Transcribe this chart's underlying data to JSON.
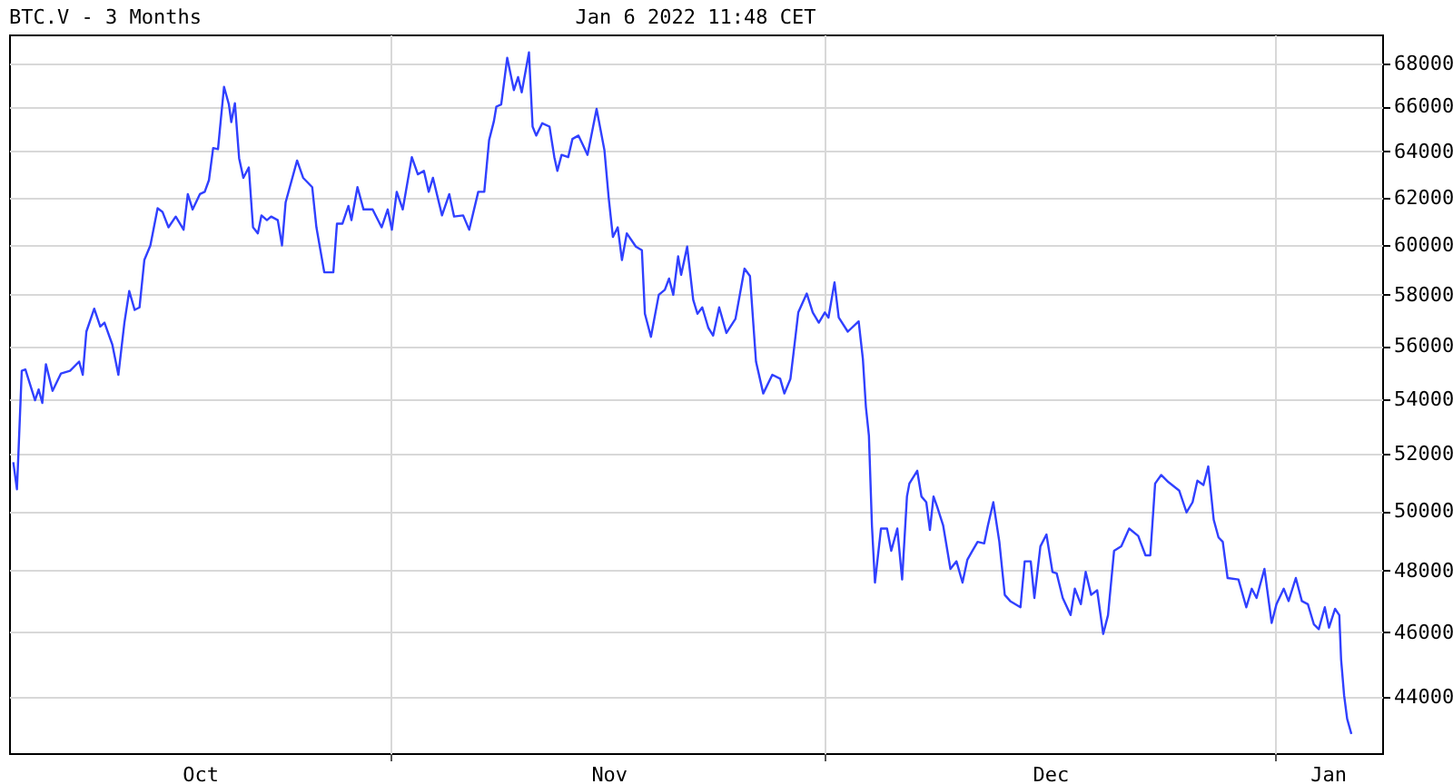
{
  "chart_data": {
    "type": "line",
    "title": "BTC.V - 3 Months",
    "subtitle": "Jan 6 2022 11:48 CET",
    "log": "y",
    "grid": true,
    "marker": "none",
    "line_style": "solid",
    "xlim": [
      "2021-10-05T16:00",
      "2022-01-08T10:00"
    ],
    "xticks": [
      {
        "value": "2021-10-18T20:00",
        "label": "Oct"
      },
      {
        "value": "2021-11-01T00:00",
        "label": null
      },
      {
        "value": "2021-11-16T01:00",
        "label": "Nov"
      },
      {
        "value": "2021-12-01T00:00",
        "label": null
      },
      {
        "value": "2021-12-16T12:00",
        "label": "Dec"
      },
      {
        "value": "2022-01-01T00:00",
        "label": null
      },
      {
        "value": "2022-01-04T16:00",
        "label": "Jan"
      }
    ],
    "ylim": [
      42340,
      69350
    ],
    "yticks": [
      44000,
      46000,
      48000,
      50000,
      52000,
      54000,
      56000,
      58000,
      60000,
      62000,
      64000,
      66000,
      68000
    ],
    "x": [
      "2021-10-05T23:00",
      "2021-10-06T05:00",
      "2021-10-06T07:00",
      "2021-10-06T13:00",
      "2021-10-06T19:00",
      "2021-10-07T11:00",
      "2021-10-07T17:00",
      "2021-10-07T23:00",
      "2021-10-08T05:00",
      "2021-10-08T16:00",
      "2021-10-09T06:00",
      "2021-10-09T21:00",
      "2021-10-10T12:00",
      "2021-10-10T18:00",
      "2021-10-11T00:00",
      "2021-10-11T13:00",
      "2021-10-11T23:00",
      "2021-10-12T06:00",
      "2021-10-12T19:00",
      "2021-10-13T05:00",
      "2021-10-13T15:00",
      "2021-10-13T23:00",
      "2021-10-14T08:00",
      "2021-10-14T16:00",
      "2021-10-15T00:00",
      "2021-10-15T10:00",
      "2021-10-15T22:00",
      "2021-10-16T06:00",
      "2021-10-16T16:00",
      "2021-10-17T04:00",
      "2021-10-17T17:00",
      "2021-10-18T00:00",
      "2021-10-18T08:00",
      "2021-10-18T20:00",
      "2021-10-19T04:00",
      "2021-10-19T11:00",
      "2021-10-19T18:00",
      "2021-10-20T02:00",
      "2021-10-20T07:00",
      "2021-10-20T12:00",
      "2021-10-20T20:00",
      "2021-10-21T00:00",
      "2021-10-21T06:00",
      "2021-10-21T13:00",
      "2021-10-21T20:00",
      "2021-10-22T05:00",
      "2021-10-22T12:00",
      "2021-10-22T20:00",
      "2021-10-23T02:00",
      "2021-10-23T11:00",
      "2021-10-23T18:00",
      "2021-10-24T05:00",
      "2021-10-24T12:00",
      "2021-10-24T18:00",
      "2021-10-25T13:00",
      "2021-10-25T23:00",
      "2021-10-26T14:00",
      "2021-10-26T21:00",
      "2021-10-27T10:00",
      "2021-10-28T01:00",
      "2021-10-28T07:00",
      "2021-10-28T16:00",
      "2021-10-29T02:00",
      "2021-10-29T07:00",
      "2021-10-29T17:00",
      "2021-10-30T03:00",
      "2021-10-30T18:00",
      "2021-10-31T09:00",
      "2021-10-31T19:00",
      "2021-11-01T02:00",
      "2021-11-01T10:00",
      "2021-11-01T20:00",
      "2021-11-02T11:00",
      "2021-11-02T21:00",
      "2021-11-03T07:00",
      "2021-11-03T15:00",
      "2021-11-03T22:00",
      "2021-11-04T13:00",
      "2021-11-05T01:00",
      "2021-11-05T09:00",
      "2021-11-06T00:00",
      "2021-11-06T10:00",
      "2021-11-07T01:00",
      "2021-11-07T11:00",
      "2021-11-07T19:00",
      "2021-11-08T03:00",
      "2021-11-08T07:00",
      "2021-11-08T15:00",
      "2021-11-09T01:00",
      "2021-11-09T12:00",
      "2021-11-09T19:00",
      "2021-11-10T01:00",
      "2021-11-10T13:00",
      "2021-11-10T19:00",
      "2021-11-11T01:00",
      "2021-11-11T11:00",
      "2021-11-11T23:00",
      "2021-11-12T07:00",
      "2021-11-12T12:00",
      "2021-11-12T19:00",
      "2021-11-13T06:00",
      "2021-11-13T13:00",
      "2021-11-13T23:00",
      "2021-11-14T06:00",
      "2021-11-14T14:00",
      "2021-11-15T05:00",
      "2021-11-15T18:00",
      "2021-11-16T01:00",
      "2021-11-16T08:00",
      "2021-11-16T16:00",
      "2021-11-16T23:00",
      "2021-11-17T07:00",
      "2021-11-17T22:00",
      "2021-11-18T08:00",
      "2021-11-18T13:00",
      "2021-11-18T23:00",
      "2021-11-19T12:00",
      "2021-11-19T22:00",
      "2021-11-20T05:00",
      "2021-11-20T12:00",
      "2021-11-20T20:00",
      "2021-11-21T01:00",
      "2021-11-21T11:00",
      "2021-11-21T21:00",
      "2021-11-22T04:00",
      "2021-11-22T12:00",
      "2021-11-22T22:00",
      "2021-11-23T06:00",
      "2021-11-23T16:00",
      "2021-11-24T04:00",
      "2021-11-24T19:00",
      "2021-11-25T10:00",
      "2021-11-25T19:00",
      "2021-11-26T05:00",
      "2021-11-26T17:00",
      "2021-11-27T08:00",
      "2021-11-27T21:00",
      "2021-11-28T04:00",
      "2021-11-28T14:00",
      "2021-11-28T19:00",
      "2021-11-29T03:00",
      "2021-11-29T17:00",
      "2021-11-30T03:00",
      "2021-11-30T13:00",
      "2021-11-30T23:00",
      "2021-12-01T05:00",
      "2021-12-01T15:00",
      "2021-12-01T22:00",
      "2021-12-02T13:00",
      "2021-12-03T07:00",
      "2021-12-03T14:00",
      "2021-12-03T19:00",
      "2021-12-04T00:00",
      "2021-12-04T05:00",
      "2021-12-04T10:00",
      "2021-12-04T20:00",
      "2021-12-05T06:00",
      "2021-12-05T13:00",
      "2021-12-05T23:00",
      "2021-12-06T07:00",
      "2021-12-06T15:00",
      "2021-12-06T19:00",
      "2021-12-07T08:00",
      "2021-12-07T15:00",
      "2021-12-07T23:00",
      "2021-12-08T05:00",
      "2021-12-08T11:00",
      "2021-12-08T17:00",
      "2021-12-09T03:00",
      "2021-12-09T15:00",
      "2021-12-10T01:00",
      "2021-12-10T11:00",
      "2021-12-10T19:00",
      "2021-12-11T02:00",
      "2021-12-11T12:00",
      "2021-12-11T23:00",
      "2021-12-12T05:00",
      "2021-12-12T14:00",
      "2021-12-13T00:00",
      "2021-12-13T09:00",
      "2021-12-13T18:00",
      "2021-12-14T11:00",
      "2021-12-14T18:00",
      "2021-12-15T04:00",
      "2021-12-15T10:00",
      "2021-12-15T20:00",
      "2021-12-16T06:00",
      "2021-12-16T16:00",
      "2021-12-16T23:00",
      "2021-12-17T09:00",
      "2021-12-17T22:00",
      "2021-12-18T05:00",
      "2021-12-18T15:00",
      "2021-12-18T23:00",
      "2021-12-19T08:00",
      "2021-12-19T18:00",
      "2021-12-20T04:00",
      "2021-12-20T12:00",
      "2021-12-20T22:00",
      "2021-12-21T10:00",
      "2021-12-21T23:00",
      "2021-12-22T14:00",
      "2021-12-23T02:00",
      "2021-12-23T10:00",
      "2021-12-23T18:00",
      "2021-12-24T04:00",
      "2021-12-24T16:00",
      "2021-12-25T10:00",
      "2021-12-25T22:00",
      "2021-12-26T08:00",
      "2021-12-26T16:00",
      "2021-12-27T02:00",
      "2021-12-27T10:00",
      "2021-12-27T19:00",
      "2021-12-28T03:00",
      "2021-12-28T10:00",
      "2021-12-28T18:00",
      "2021-12-29T12:00",
      "2021-12-30T01:00",
      "2021-12-30T10:00",
      "2021-12-30T18:00",
      "2021-12-31T07:00",
      "2021-12-31T19:00",
      "2022-01-01T03:00",
      "2022-01-01T15:00",
      "2022-01-01T23:00",
      "2022-01-02T11:00",
      "2022-01-02T21:00",
      "2022-01-03T07:00",
      "2022-01-03T17:00",
      "2022-01-04T01:00",
      "2022-01-04T11:00",
      "2022-01-04T18:00",
      "2022-01-05T04:00",
      "2022-01-05T11:00",
      "2022-01-05T14:00",
      "2022-01-05T19:00",
      "2022-01-06T00:00",
      "2022-01-06T07:00"
    ],
    "series": [
      {
        "color": "#3040ff",
        "values": [
          51700,
          50750,
          51750,
          55050,
          55100,
          53950,
          54350,
          53850,
          55300,
          54300,
          54950,
          55050,
          55400,
          54900,
          56550,
          57450,
          56750,
          56900,
          56050,
          54900,
          56900,
          58150,
          57400,
          57500,
          59400,
          60000,
          61550,
          61400,
          60750,
          61200,
          60650,
          62150,
          61500,
          62150,
          62250,
          62750,
          64150,
          64100,
          65500,
          66900,
          66100,
          65300,
          66150,
          63700,
          62850,
          63300,
          60750,
          60500,
          61250,
          61050,
          61200,
          61050,
          60000,
          61800,
          63600,
          62850,
          62450,
          60750,
          58900,
          58900,
          60900,
          60900,
          61650,
          61050,
          62450,
          61500,
          61500,
          60750,
          61500,
          60650,
          62250,
          61500,
          63750,
          63000,
          63150,
          62250,
          62850,
          61250,
          62150,
          61200,
          61250,
          60650,
          62250,
          62250,
          64500,
          65350,
          66000,
          66100,
          68250,
          66750,
          67350,
          66650,
          68500,
          65100,
          64700,
          65250,
          65100,
          63750,
          63150,
          63850,
          63750,
          64550,
          64700,
          64300,
          63850,
          65900,
          64050,
          62000,
          60350,
          60750,
          59400,
          60500,
          59950,
          59800,
          57250,
          56350,
          58000,
          58200,
          58650,
          58000,
          59550,
          58800,
          59950,
          57800,
          57250,
          57500,
          56700,
          56400,
          57500,
          56500,
          57050,
          59050,
          58750,
          55400,
          54200,
          54900,
          54750,
          54200,
          54750,
          55700,
          57300,
          58050,
          57300,
          56900,
          57300,
          57100,
          58500,
          57100,
          56550,
          56950,
          55500,
          53700,
          52650,
          49500,
          47600,
          49400,
          49400,
          48650,
          49400,
          47700,
          50500,
          50950,
          51400,
          50500,
          50300,
          49350,
          50500,
          50150,
          49500,
          48050,
          48300,
          47600,
          48350,
          48600,
          48950,
          48900,
          49500,
          50300,
          48950,
          47200,
          47000,
          46800,
          48300,
          48300,
          47100,
          48800,
          49200,
          47950,
          47900,
          47100,
          46550,
          47400,
          46900,
          47950,
          47200,
          47350,
          45950,
          46550,
          48650,
          48800,
          49400,
          49150,
          48500,
          48500,
          50950,
          51250,
          51000,
          50700,
          49950,
          50300,
          51050,
          50900,
          51550,
          49700,
          49100,
          48950,
          47750,
          47700,
          46800,
          47400,
          47100,
          48050,
          46300,
          46900,
          47400,
          47000,
          47750,
          47000,
          46900,
          46250,
          46100,
          46800,
          46150,
          46750,
          46550,
          45150,
          44050,
          43350,
          42900
        ]
      }
    ]
  }
}
